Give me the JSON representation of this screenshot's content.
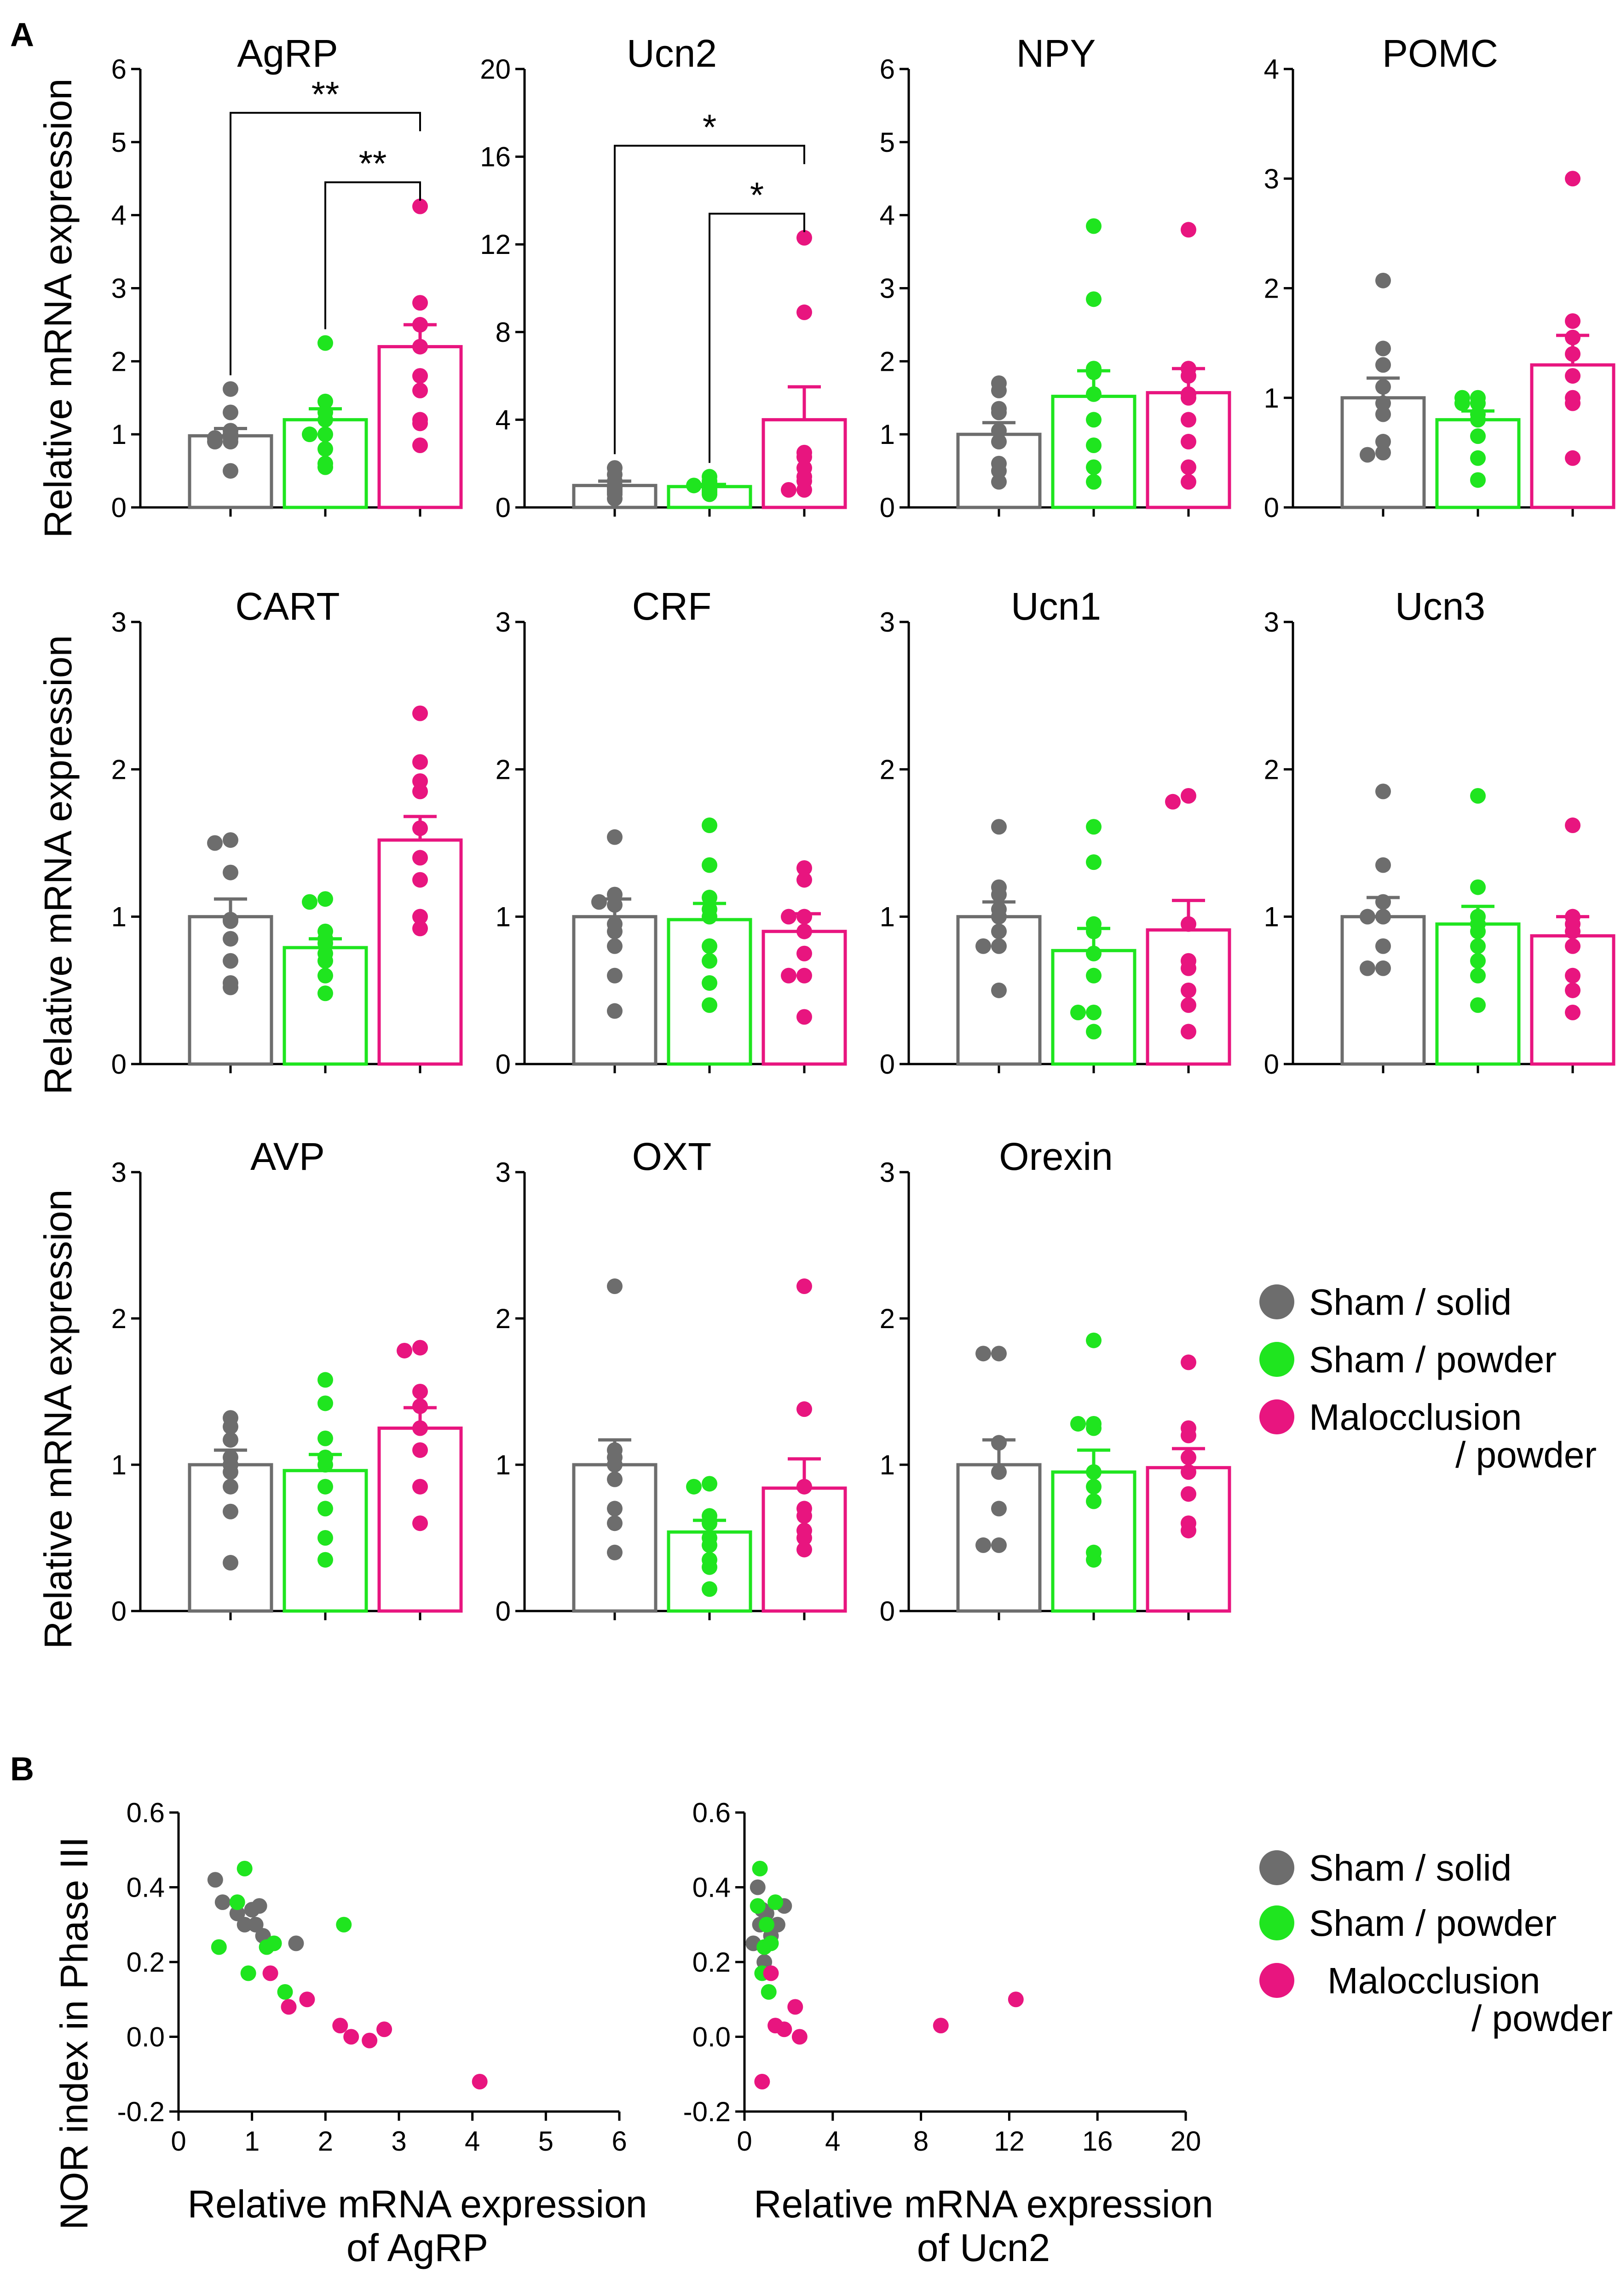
{
  "figure": {
    "panel_a_label": "A",
    "panel_b_label": "B",
    "ylabel_a": "Relative mRNA expression",
    "ylabel_b": "NOR index in Phase III"
  },
  "colors": {
    "sham_solid": "#6d6d6d",
    "sham_powder": "#1fe51f",
    "malocclusion_powder": "#e8157f"
  },
  "legend": {
    "items": [
      {
        "label": "Sham / solid",
        "color": "#6d6d6d"
      },
      {
        "label": "Sham / powder",
        "color": "#1fe51f"
      },
      {
        "label": "Malocclusion",
        "label2": "/ powder",
        "color": "#e8157f"
      }
    ]
  },
  "chart_data": [
    {
      "type": "bar",
      "title": "AgRP",
      "ylabel": "Relative mRNA expression",
      "ylim": [
        0,
        6
      ],
      "yticks": [
        "0",
        "1",
        "2",
        "3",
        "4",
        "5",
        "6"
      ],
      "groups": [
        "Sham / solid",
        "Sham / powder",
        "Malocclusion / powder"
      ],
      "means": [
        0.98,
        1.2,
        2.2
      ],
      "sem": [
        0.1,
        0.15,
        0.3
      ],
      "points": [
        [
          1.62,
          1.3,
          1.05,
          1.0,
          0.95,
          0.95,
          0.9,
          0.9,
          0.5
        ],
        [
          2.25,
          1.45,
          1.3,
          1.2,
          1.0,
          1.0,
          0.8,
          0.6,
          0.55
        ],
        [
          4.12,
          2.8,
          2.5,
          2.2,
          1.8,
          1.6,
          1.2,
          1.15,
          0.85
        ]
      ],
      "significance": [
        {
          "from": 0,
          "to": 2,
          "label": "**",
          "y": 5.4
        },
        {
          "from": 1,
          "to": 2,
          "label": "**",
          "y": 4.45
        }
      ]
    },
    {
      "type": "bar",
      "title": "Ucn2",
      "ylabel": "Relative mRNA expression",
      "ylim": [
        0,
        20
      ],
      "yticks": [
        "0",
        "4",
        "8",
        "12",
        "16",
        "20"
      ],
      "groups": [
        "Sham / solid",
        "Sham / powder",
        "Malocclusion / powder"
      ],
      "means": [
        1.0,
        0.95,
        4.0
      ],
      "sem": [
        0.2,
        0.1,
        1.5
      ],
      "points": [
        [
          1.8,
          1.5,
          1.2,
          1.0,
          0.9,
          0.8,
          0.7,
          0.6,
          0.4
        ],
        [
          1.4,
          1.2,
          1.1,
          1.0,
          1.0,
          0.9,
          0.8,
          0.7,
          0.6
        ],
        [
          12.3,
          8.9,
          2.5,
          2.3,
          1.8,
          1.4,
          1.2,
          0.8,
          0.8
        ]
      ],
      "significance": [
        {
          "from": 0,
          "to": 2,
          "label": "*",
          "y": 16.5
        },
        {
          "from": 1,
          "to": 2,
          "label": "*",
          "y": 13.4
        }
      ]
    },
    {
      "type": "bar",
      "title": "NPY",
      "ylabel": "Relative mRNA expression",
      "ylim": [
        0,
        6
      ],
      "yticks": [
        "0",
        "1",
        "2",
        "3",
        "4",
        "5",
        "6"
      ],
      "groups": [
        "Sham / solid",
        "Sham / powder",
        "Malocclusion / powder"
      ],
      "means": [
        1.0,
        1.52,
        1.57
      ],
      "sem": [
        0.16,
        0.35,
        0.33
      ],
      "points": [
        [
          1.7,
          1.6,
          1.35,
          1.3,
          1.05,
          0.9,
          0.6,
          0.5,
          0.35
        ],
        [
          3.85,
          2.85,
          1.9,
          1.85,
          1.55,
          1.2,
          0.85,
          0.55,
          0.35
        ],
        [
          3.8,
          1.9,
          1.8,
          1.55,
          1.5,
          1.2,
          0.9,
          0.55,
          0.35
        ]
      ],
      "significance": []
    },
    {
      "type": "bar",
      "title": "POMC",
      "ylabel": "Relative mRNA expression",
      "ylim": [
        0,
        4
      ],
      "yticks": [
        "0",
        "1",
        "2",
        "3",
        "4"
      ],
      "groups": [
        "Sham / solid",
        "Sham / powder",
        "Malocclusion / powder"
      ],
      "means": [
        1.0,
        0.8,
        1.3
      ],
      "sem": [
        0.18,
        0.08,
        0.27
      ],
      "points": [
        [
          2.07,
          1.45,
          1.3,
          1.1,
          0.95,
          0.85,
          0.6,
          0.5,
          0.48
        ],
        [
          1.0,
          1.0,
          0.95,
          0.95,
          0.85,
          0.8,
          0.65,
          0.45,
          0.25
        ],
        [
          3.0,
          1.7,
          1.55,
          1.4,
          1.2,
          1.0,
          0.95,
          0.45
        ]
      ],
      "significance": []
    },
    {
      "type": "bar",
      "title": "CART",
      "ylabel": "Relative mRNA expression",
      "ylim": [
        0,
        3
      ],
      "yticks": [
        "0",
        "1",
        "2",
        "3"
      ],
      "groups": [
        "Sham / solid",
        "Sham / powder",
        "Malocclusion / powder"
      ],
      "means": [
        1.0,
        0.79,
        1.52
      ],
      "sem": [
        0.12,
        0.06,
        0.16
      ],
      "points": [
        [
          1.52,
          1.5,
          1.3,
          0.98,
          0.97,
          0.85,
          0.7,
          0.55,
          0.52
        ],
        [
          1.12,
          1.1,
          0.9,
          0.85,
          0.82,
          0.75,
          0.7,
          0.6,
          0.48
        ],
        [
          2.38,
          2.05,
          1.92,
          1.85,
          1.6,
          1.4,
          1.25,
          1.0,
          0.92
        ]
      ],
      "significance": []
    },
    {
      "type": "bar",
      "title": "CRF",
      "ylabel": "Relative mRNA expression",
      "ylim": [
        0,
        3
      ],
      "yticks": [
        "0",
        "1",
        "2",
        "3"
      ],
      "groups": [
        "Sham / solid",
        "Sham / powder",
        "Malocclusion / powder"
      ],
      "means": [
        1.0,
        0.98,
        0.9
      ],
      "sem": [
        0.12,
        0.11,
        0.12
      ],
      "points": [
        [
          1.54,
          1.15,
          1.08,
          1.1,
          0.95,
          0.9,
          0.8,
          0.6,
          0.36
        ],
        [
          1.62,
          1.35,
          1.13,
          1.05,
          1.0,
          0.8,
          0.7,
          0.55,
          0.4
        ],
        [
          1.33,
          1.25,
          1.0,
          1.0,
          0.9,
          0.75,
          0.6,
          0.6,
          0.32
        ]
      ],
      "significance": []
    },
    {
      "type": "bar",
      "title": "Ucn1",
      "ylabel": "Relative mRNA expression",
      "ylim": [
        0,
        3
      ],
      "yticks": [
        "0",
        "1",
        "2",
        "3"
      ],
      "groups": [
        "Sham / solid",
        "Sham / powder",
        "Malocclusion / powder"
      ],
      "means": [
        1.0,
        0.77,
        0.91
      ],
      "sem": [
        0.1,
        0.15,
        0.2
      ],
      "points": [
        [
          1.61,
          1.2,
          1.15,
          1.05,
          1.0,
          0.9,
          0.8,
          0.8,
          0.5
        ],
        [
          1.61,
          1.37,
          0.95,
          0.9,
          0.75,
          0.6,
          0.35,
          0.35,
          0.22
        ],
        [
          1.82,
          1.78,
          0.95,
          0.7,
          0.65,
          0.5,
          0.4,
          0.22
        ]
      ],
      "significance": []
    },
    {
      "type": "bar",
      "title": "Ucn3",
      "ylabel": "Relative mRNA expression",
      "ylim": [
        0,
        3
      ],
      "yticks": [
        "0",
        "1",
        "2",
        "3"
      ],
      "groups": [
        "Sham / solid",
        "Sham / powder",
        "Malocclusion / powder"
      ],
      "means": [
        1.0,
        0.95,
        0.87
      ],
      "sem": [
        0.13,
        0.12,
        0.13
      ],
      "points": [
        [
          1.85,
          1.35,
          1.1,
          1.0,
          1.0,
          0.8,
          0.65,
          0.65
        ],
        [
          1.82,
          1.2,
          1.0,
          0.95,
          0.9,
          0.8,
          0.7,
          0.6,
          0.4
        ],
        [
          1.62,
          1.0,
          0.95,
          0.9,
          0.8,
          0.6,
          0.5,
          0.35
        ]
      ],
      "significance": []
    },
    {
      "type": "bar",
      "title": "AVP",
      "ylabel": "Relative mRNA expression",
      "ylim": [
        0,
        3
      ],
      "yticks": [
        "0",
        "1",
        "2",
        "3"
      ],
      "groups": [
        "Sham / solid",
        "Sham / powder",
        "Malocclusion / powder"
      ],
      "means": [
        1.0,
        0.96,
        1.25
      ],
      "sem": [
        0.1,
        0.11,
        0.14
      ],
      "points": [
        [
          1.32,
          1.26,
          1.17,
          1.05,
          1.0,
          0.95,
          0.85,
          0.68,
          0.33
        ],
        [
          1.58,
          1.42,
          1.18,
          1.05,
          1.0,
          0.85,
          0.7,
          0.5,
          0.35
        ],
        [
          1.8,
          1.78,
          1.5,
          1.4,
          1.25,
          1.1,
          0.85,
          0.6
        ]
      ],
      "significance": []
    },
    {
      "type": "bar",
      "title": "OXT",
      "ylabel": "Relative mRNA expression",
      "ylim": [
        0,
        3
      ],
      "yticks": [
        "0",
        "1",
        "2",
        "3"
      ],
      "groups": [
        "Sham / solid",
        "Sham / powder",
        "Malocclusion / powder"
      ],
      "means": [
        1.0,
        0.54,
        0.84
      ],
      "sem": [
        0.17,
        0.08,
        0.2
      ],
      "points": [
        [
          2.22,
          1.1,
          1.05,
          1.0,
          0.9,
          0.7,
          0.6,
          0.4
        ],
        [
          0.87,
          0.85,
          0.65,
          0.6,
          0.5,
          0.45,
          0.35,
          0.3,
          0.15
        ],
        [
          2.22,
          1.38,
          0.85,
          0.7,
          0.65,
          0.55,
          0.5,
          0.42
        ]
      ],
      "significance": []
    },
    {
      "type": "bar",
      "title": "Orexin",
      "ylabel": "Relative mRNA expression",
      "ylim": [
        0,
        3
      ],
      "yticks": [
        "0",
        "1",
        "2",
        "3"
      ],
      "groups": [
        "Sham / solid",
        "Sham / powder",
        "Malocclusion / powder"
      ],
      "means": [
        1.0,
        0.95,
        0.98
      ],
      "sem": [
        0.17,
        0.15,
        0.13
      ],
      "points": [
        [
          1.76,
          1.76,
          1.15,
          0.95,
          0.7,
          0.45,
          0.45
        ],
        [
          1.85,
          1.28,
          1.28,
          1.25,
          0.95,
          0.85,
          0.75,
          0.4,
          0.35
        ],
        [
          1.7,
          1.25,
          1.2,
          1.05,
          0.95,
          0.8,
          0.6,
          0.55
        ]
      ],
      "significance": []
    },
    {
      "type": "scatter",
      "title": "",
      "xlabel": "Relative mRNA expression",
      "xlabel2": "of AgRP",
      "ylabel": "NOR index in Phase III",
      "xlim": [
        0,
        6
      ],
      "ylim": [
        -0.2,
        0.6
      ],
      "xticks": [
        "0",
        "1",
        "2",
        "3",
        "4",
        "5",
        "6"
      ],
      "yticks": [
        "-0.2",
        "0.0",
        "0.2",
        "0.4",
        "0.6"
      ],
      "series": [
        {
          "name": "Sham / solid",
          "x": [
            0.5,
            0.6,
            0.8,
            0.9,
            1.0,
            1.05,
            1.1,
            1.15,
            1.6
          ],
          "y": [
            0.42,
            0.36,
            0.33,
            0.3,
            0.34,
            0.3,
            0.35,
            0.27,
            0.25
          ]
        },
        {
          "name": "Sham / powder",
          "x": [
            0.55,
            0.8,
            0.9,
            0.95,
            1.2,
            1.3,
            1.45,
            2.25
          ],
          "y": [
            0.24,
            0.36,
            0.45,
            0.17,
            0.24,
            0.25,
            0.12,
            0.3
          ]
        },
        {
          "name": "Malocclusion / powder",
          "x": [
            1.25,
            1.5,
            1.75,
            2.2,
            2.35,
            2.6,
            2.8,
            4.1
          ],
          "y": [
            0.17,
            0.08,
            0.1,
            0.03,
            0.0,
            -0.01,
            0.02,
            -0.12
          ]
        }
      ]
    },
    {
      "type": "scatter",
      "title": "",
      "xlabel": "Relative mRNA expression",
      "xlabel2": "of Ucn2",
      "ylabel": "NOR index in Phase III",
      "xlim": [
        0,
        20
      ],
      "ylim": [
        -0.2,
        0.6
      ],
      "xticks": [
        "0",
        "4",
        "8",
        "12",
        "16",
        "20"
      ],
      "yticks": [
        "-0.2",
        "0.0",
        "0.2",
        "0.4",
        "0.6"
      ],
      "series": [
        {
          "name": "Sham / solid",
          "x": [
            0.4,
            0.6,
            0.7,
            0.8,
            0.9,
            1.0,
            1.2,
            1.5,
            1.8
          ],
          "y": [
            0.25,
            0.4,
            0.3,
            0.34,
            0.2,
            0.33,
            0.27,
            0.3,
            0.35
          ]
        },
        {
          "name": "Sham / powder",
          "x": [
            0.6,
            0.7,
            0.8,
            0.9,
            1.0,
            1.1,
            1.2,
            1.4
          ],
          "y": [
            0.35,
            0.45,
            0.17,
            0.24,
            0.3,
            0.12,
            0.25,
            0.36
          ]
        },
        {
          "name": "Malocclusion / powder",
          "x": [
            0.8,
            1.2,
            1.4,
            1.8,
            2.3,
            2.5,
            8.9,
            12.3
          ],
          "y": [
            -0.12,
            0.17,
            0.03,
            0.02,
            0.08,
            0.0,
            0.03,
            0.1
          ]
        }
      ]
    }
  ]
}
